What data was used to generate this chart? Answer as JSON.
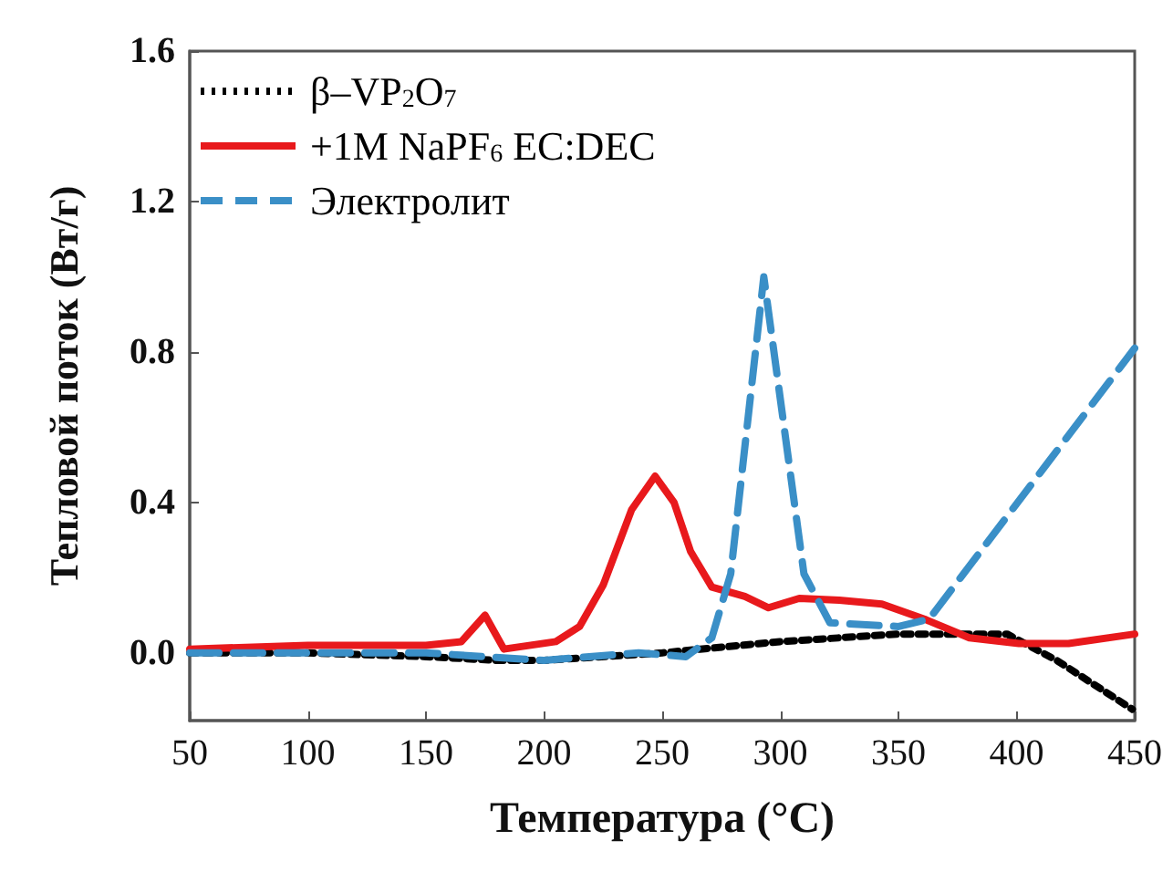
{
  "chart_data": {
    "type": "line",
    "xlabel": "Температура (°C)",
    "ylabel": "Тепловой поток (Вт/г)",
    "xlim": [
      50,
      450
    ],
    "xticks": [
      50,
      100,
      150,
      200,
      250,
      300,
      350,
      400,
      450
    ],
    "ylim": [
      -0.18,
      1.6
    ],
    "yticks": [
      {
        "value": 0,
        "label": "0.0"
      },
      0.4,
      0.8,
      1.2,
      1.6
    ],
    "grid": false,
    "legend": "top left",
    "marker": "none",
    "series": [
      {
        "name": "β–VP$_{2}$O$_{7}$",
        "color": "#000000",
        "line_style": "dotted",
        "x": [
          50,
          100,
          150,
          180,
          200,
          250,
          300,
          350,
          396,
          417,
          449
        ],
        "values": [
          0,
          0,
          -0.01,
          -0.02,
          -0.02,
          0,
          0.03,
          0.05,
          0.05,
          -0.02,
          -0.15
        ]
      },
      {
        "name": "+1M NaPF$_{6}$ EC:DEC",
        "color": "#e8191c",
        "line_style": "solid",
        "x": [
          50,
          100,
          150,
          165,
          175,
          183,
          205,
          215,
          225,
          237,
          247,
          255,
          262,
          271,
          285,
          295,
          308,
          325,
          343,
          361,
          380,
          401,
          422,
          450
        ],
        "values": [
          0.01,
          0.02,
          0.02,
          0.03,
          0.1,
          0.01,
          0.03,
          0.07,
          0.18,
          0.38,
          0.47,
          0.4,
          0.27,
          0.175,
          0.15,
          0.12,
          0.145,
          0.14,
          0.13,
          0.09,
          0.04,
          0.025,
          0.025,
          0.05
        ]
      },
      {
        "name": "Электролит",
        "color": "#3a8fc7",
        "line_style": "dashed",
        "x": [
          50,
          100,
          150,
          200,
          240,
          260,
          271,
          279,
          293,
          310,
          321,
          350,
          363,
          450
        ],
        "values": [
          0,
          0,
          0,
          -0.02,
          0,
          -0.01,
          0.04,
          0.21,
          1.0,
          0.21,
          0.08,
          0.07,
          0.09,
          0.81
        ]
      }
    ]
  }
}
